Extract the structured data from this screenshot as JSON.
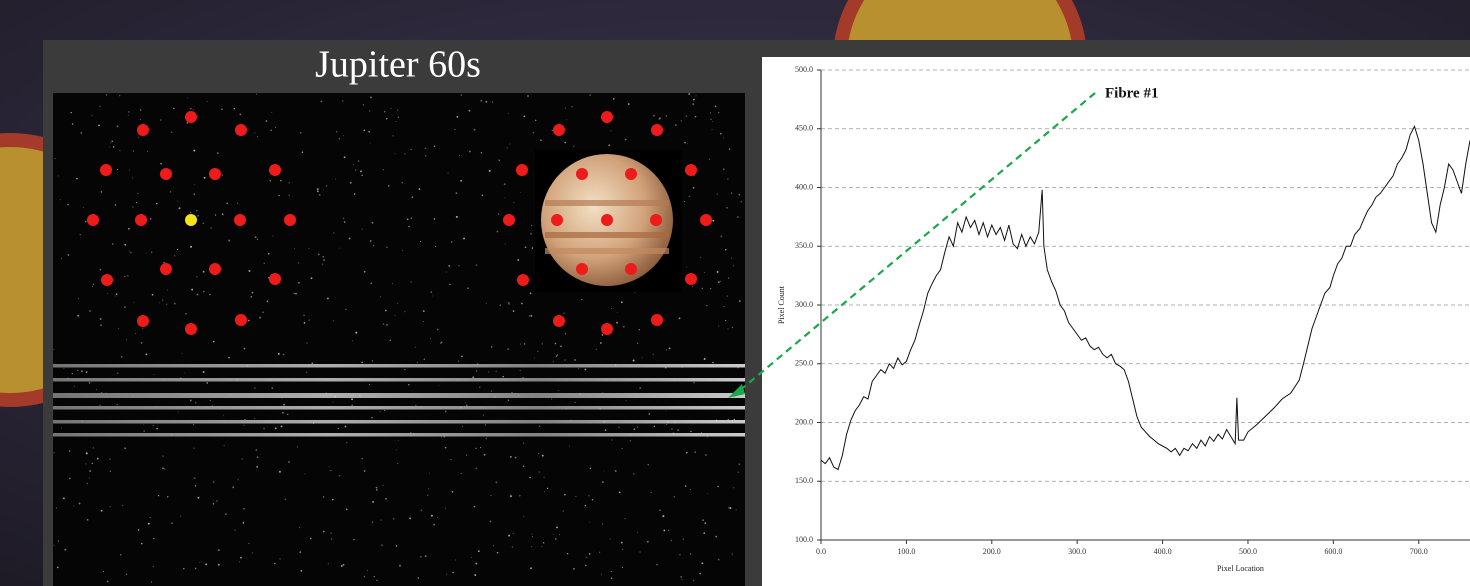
{
  "slide_title": "Jupiter 60s",
  "chart_data": {
    "type": "line",
    "annotation": "Fibre #1",
    "ylabel": "Pixel Count",
    "xlabel": "Pixel Location",
    "xlim": [
      0,
      760
    ],
    "ylim": [
      100,
      500
    ],
    "xticks": [
      {
        "value": 0,
        "label": "0.0"
      },
      {
        "value": 100,
        "label": "100.0"
      },
      {
        "value": 200,
        "label": "200.0"
      },
      {
        "value": 300,
        "label": "300.0"
      },
      {
        "value": 400,
        "label": "400.0"
      },
      {
        "value": 500,
        "label": "500.0"
      },
      {
        "value": 600,
        "label": "600.0"
      },
      {
        "value": 700,
        "label": "700.0"
      }
    ],
    "yticks": [
      {
        "value": 100,
        "label": "100.0"
      },
      {
        "value": 150,
        "label": "150.0"
      },
      {
        "value": 200,
        "label": "200.0"
      },
      {
        "value": 250,
        "label": "250.0"
      },
      {
        "value": 300,
        "label": "300.0"
      },
      {
        "value": 350,
        "label": "350.0"
      },
      {
        "value": 400,
        "label": "400.0"
      },
      {
        "value": 450,
        "label": "450.0"
      },
      {
        "value": 500,
        "label": "500.0"
      }
    ],
    "grid": true,
    "x": [
      0,
      5,
      10,
      15,
      20,
      25,
      30,
      35,
      40,
      45,
      50,
      55,
      60,
      65,
      70,
      75,
      80,
      85,
      90,
      95,
      100,
      105,
      110,
      115,
      120,
      125,
      130,
      135,
      140,
      145,
      150,
      155,
      160,
      165,
      170,
      175,
      180,
      185,
      190,
      195,
      200,
      205,
      210,
      215,
      220,
      225,
      230,
      235,
      240,
      245,
      250,
      255,
      259,
      261,
      265,
      270,
      275,
      280,
      285,
      290,
      295,
      300,
      305,
      310,
      315,
      320,
      325,
      330,
      335,
      340,
      345,
      350,
      355,
      360,
      365,
      370,
      375,
      380,
      385,
      390,
      395,
      400,
      405,
      410,
      415,
      420,
      425,
      430,
      435,
      440,
      445,
      450,
      455,
      460,
      465,
      470,
      475,
      480,
      485,
      487,
      489,
      495,
      500,
      510,
      520,
      530,
      540,
      550,
      560,
      565,
      570,
      575,
      580,
      585,
      590,
      596,
      600,
      605,
      610,
      615,
      620,
      625,
      631,
      635,
      640,
      645,
      650,
      655,
      660,
      666,
      670,
      675,
      680,
      685,
      690,
      695,
      700,
      705,
      710,
      715,
      720,
      725,
      730,
      735,
      740,
      745,
      750,
      755,
      760
    ],
    "series": [
      {
        "color": "#111111",
        "values": [
          168,
          165,
          170,
          162,
          160,
          172,
          190,
          202,
          210,
          215,
          222,
          220,
          235,
          240,
          245,
          242,
          250,
          246,
          255,
          249,
          252,
          262,
          270,
          283,
          295,
          310,
          318,
          325,
          330,
          345,
          358,
          350,
          370,
          362,
          375,
          366,
          372,
          360,
          370,
          358,
          368,
          360,
          366,
          355,
          368,
          352,
          348,
          360,
          350,
          358,
          352,
          362,
          398,
          350,
          330,
          320,
          312,
          300,
          295,
          285,
          280,
          275,
          270,
          272,
          265,
          262,
          264,
          258,
          255,
          258,
          250,
          248,
          245,
          235,
          220,
          205,
          196,
          192,
          188,
          185,
          182,
          180,
          178,
          175,
          178,
          172,
          178,
          176,
          182,
          178,
          185,
          180,
          188,
          184,
          190,
          186,
          194,
          188,
          182,
          221,
          185,
          185,
          192,
          198,
          205,
          212,
          220,
          225,
          236,
          250,
          265,
          280,
          290,
          300,
          310,
          315,
          325,
          335,
          340,
          350,
          350,
          360,
          365,
          372,
          380,
          385,
          392,
          395,
          400,
          406,
          410,
          420,
          425,
          432,
          445,
          452,
          440,
          420,
          395,
          370,
          362,
          385,
          400,
          420,
          415,
          405,
          395,
          420,
          440
        ]
      }
    ]
  }
}
